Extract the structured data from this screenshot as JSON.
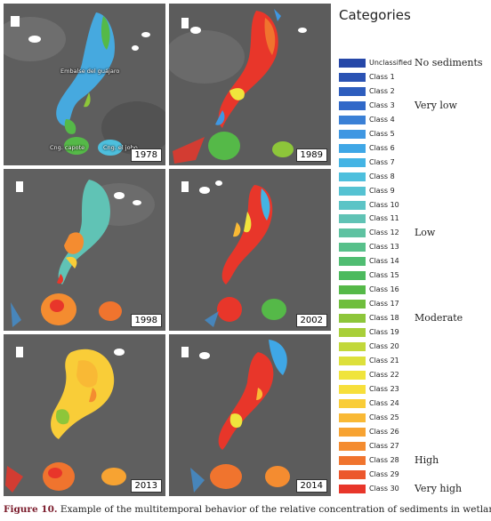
{
  "legend": {
    "title": "Categories",
    "classes": [
      {
        "label": "Unclassified",
        "color": "#2547a8"
      },
      {
        "label": "Class 1",
        "color": "#2a52b3"
      },
      {
        "label": "Class 2",
        "color": "#2d5dbe"
      },
      {
        "label": "Class 3",
        "color": "#3068c8"
      },
      {
        "label": "Class 4",
        "color": "#3a80d6"
      },
      {
        "label": "Class 5",
        "color": "#3f97e2"
      },
      {
        "label": "Class 6",
        "color": "#3fa7e6"
      },
      {
        "label": "Class 7",
        "color": "#44b4e4"
      },
      {
        "label": "Class 8",
        "color": "#4dbfdd"
      },
      {
        "label": "Class 9",
        "color": "#55c2d2"
      },
      {
        "label": "Class 10",
        "color": "#5cc4c6"
      },
      {
        "label": "Class 11",
        "color": "#60c3b5"
      },
      {
        "label": "Class 12",
        "color": "#5ec2a1"
      },
      {
        "label": "Class 13",
        "color": "#57c08a"
      },
      {
        "label": "Class 14",
        "color": "#50bd72"
      },
      {
        "label": "Class 15",
        "color": "#4cba5e"
      },
      {
        "label": "Class 16",
        "color": "#55b948"
      },
      {
        "label": "Class 17",
        "color": "#6fbe3d"
      },
      {
        "label": "Class 18",
        "color": "#8dc63a"
      },
      {
        "label": "Class 19",
        "color": "#a8cf39"
      },
      {
        "label": "Class 20",
        "color": "#c2d83a"
      },
      {
        "label": "Class 21",
        "color": "#dde03b"
      },
      {
        "label": "Class 22",
        "color": "#f0e43c"
      },
      {
        "label": "Class 23",
        "color": "#f7df3b"
      },
      {
        "label": "Class 24",
        "color": "#f9cd38"
      },
      {
        "label": "Class 25",
        "color": "#f9b935"
      },
      {
        "label": "Class 26",
        "color": "#f7a332"
      },
      {
        "label": "Class 27",
        "color": "#f48c30"
      },
      {
        "label": "Class 28",
        "color": "#f0742e"
      },
      {
        "label": "Class 29",
        "color": "#ec572c"
      },
      {
        "label": "Class 30",
        "color": "#e8362a"
      }
    ],
    "categories": [
      {
        "label": "No sediments",
        "row": 0
      },
      {
        "label": "Very low",
        "row": 3
      },
      {
        "label": "Low",
        "row": 12
      },
      {
        "label": "Moderate",
        "row": 18
      },
      {
        "label": "High",
        "row": 28
      },
      {
        "label": "Very high",
        "row": 30
      }
    ]
  },
  "maps": {
    "years": [
      "1978",
      "1989",
      "1998",
      "2002",
      "2013",
      "2014"
    ],
    "labels": {
      "embalse": "Embalse del guájaro",
      "capote": "Cng. capote",
      "jobo": "Cng. el jobo"
    }
  },
  "caption": {
    "label": "Figure 10.",
    "text": " Example of the multitemporal behavior of the relative concentration of sediments in wetlands."
  }
}
